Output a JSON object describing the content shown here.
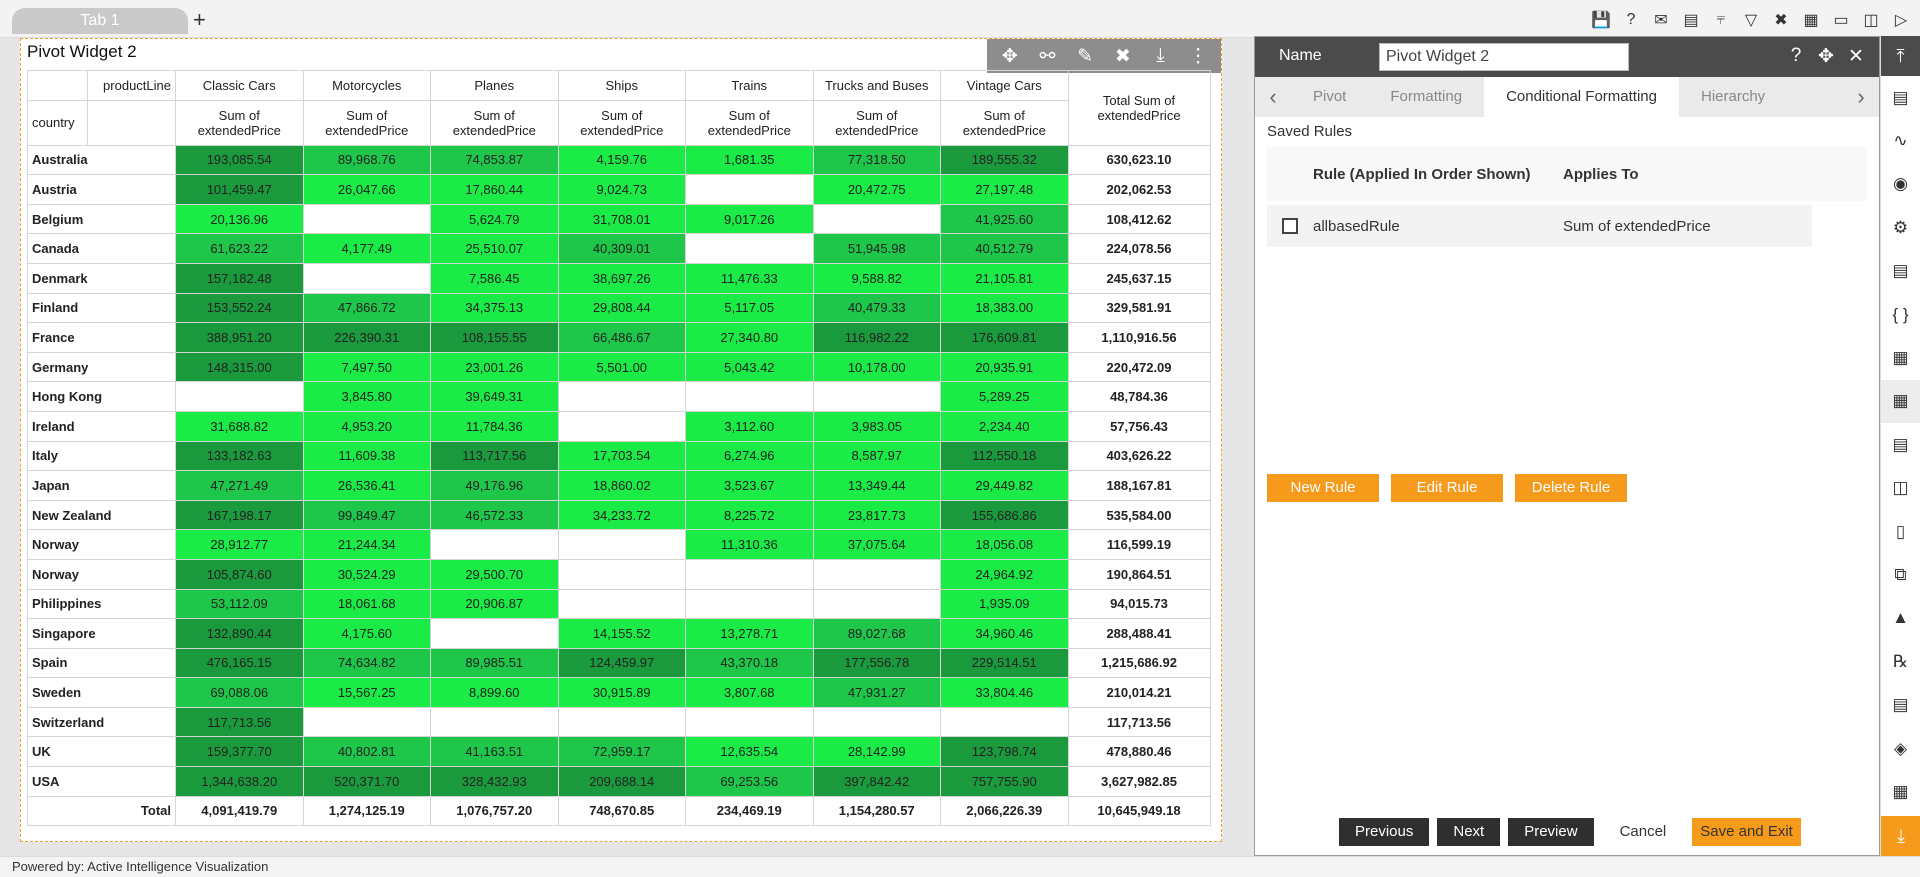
{
  "tabs": [
    {
      "label": "Tab 1"
    }
  ],
  "tab_add": "+",
  "toolbar_icons": [
    "save-icon",
    "help-icon",
    "mail-icon",
    "comment-icon",
    "clear-filter-icon",
    "filter-icon",
    "tools-icon",
    "table-icon",
    "screen-icon",
    "devices-icon",
    "play-icon"
  ],
  "widget": {
    "title": "Pivot Widget 2",
    "toolbar_icons": [
      "move-icon",
      "link-icon",
      "edit-icon",
      "settings-icon",
      "download-icon",
      "more-icon"
    ],
    "row_field": "country",
    "col_field": "productLine",
    "measure": "Sum of extendedPrice",
    "total_header": "Total Sum of extendedPrice",
    "columns": [
      "Classic Cars",
      "Motorcycles",
      "Planes",
      "Ships",
      "Trains",
      "Trucks and Buses",
      "Vintage Cars"
    ],
    "rows": [
      {
        "country": "Australia",
        "cells": [
          "193,085.54",
          "89,968.76",
          "74,853.87",
          "4,159.76",
          "1,681.35",
          "77,318.50",
          "189,555.32"
        ],
        "total": "630,623.10"
      },
      {
        "country": "Austria",
        "cells": [
          "101,459.47",
          "26,047.66",
          "17,860.44",
          "9,024.73",
          "",
          "20,472.75",
          "27,197.48"
        ],
        "total": "202,062.53"
      },
      {
        "country": "Belgium",
        "cells": [
          "20,136.96",
          "",
          "5,624.79",
          "31,708.01",
          "9,017.26",
          "",
          "41,925.60"
        ],
        "total": "108,412.62"
      },
      {
        "country": "Canada",
        "cells": [
          "61,623.22",
          "4,177.49",
          "25,510.07",
          "40,309.01",
          "",
          "51,945.98",
          "40,512.79"
        ],
        "total": "224,078.56"
      },
      {
        "country": "Denmark",
        "cells": [
          "157,182.48",
          "",
          "7,586.45",
          "38,697.26",
          "11,476.33",
          "9,588.82",
          "21,105.81"
        ],
        "total": "245,637.15"
      },
      {
        "country": "Finland",
        "cells": [
          "153,552.24",
          "47,866.72",
          "34,375.13",
          "29,808.44",
          "5,117.05",
          "40,479.33",
          "18,383.00"
        ],
        "total": "329,581.91"
      },
      {
        "country": "France",
        "cells": [
          "388,951.20",
          "226,390.31",
          "108,155.55",
          "66,486.67",
          "27,340.80",
          "116,982.22",
          "176,609.81"
        ],
        "total": "1,110,916.56"
      },
      {
        "country": "Germany",
        "cells": [
          "148,315.00",
          "7,497.50",
          "23,001.26",
          "5,501.00",
          "5,043.42",
          "10,178.00",
          "20,935.91"
        ],
        "total": "220,472.09"
      },
      {
        "country": "Hong Kong",
        "cells": [
          "",
          "3,845.80",
          "39,649.31",
          "",
          "",
          "",
          "5,289.25"
        ],
        "total": "48,784.36"
      },
      {
        "country": "Ireland",
        "cells": [
          "31,688.82",
          "4,953.20",
          "11,784.36",
          "",
          "3,112.60",
          "3,983.05",
          "2,234.40"
        ],
        "total": "57,756.43"
      },
      {
        "country": "Italy",
        "cells": [
          "133,182.63",
          "11,609.38",
          "113,717.56",
          "17,703.54",
          "6,274.96",
          "8,587.97",
          "112,550.18"
        ],
        "total": "403,626.22"
      },
      {
        "country": "Japan",
        "cells": [
          "47,271.49",
          "26,536.41",
          "49,176.96",
          "18,860.02",
          "3,523.67",
          "13,349.44",
          "29,449.82"
        ],
        "total": "188,167.81"
      },
      {
        "country": "New Zealand",
        "cells": [
          "167,198.17",
          "99,849.47",
          "46,572.33",
          "34,233.72",
          "8,225.72",
          "23,817.73",
          "155,686.86"
        ],
        "total": "535,584.00"
      },
      {
        "country": "Norway",
        "cells": [
          "28,912.77",
          "21,244.34",
          "",
          "",
          "11,310.36",
          "37,075.64",
          "18,056.08"
        ],
        "total": "116,599.19"
      },
      {
        "country": "Norway",
        "cells": [
          "105,874.60",
          "30,524.29",
          "29,500.70",
          "",
          "",
          "",
          "24,964.92"
        ],
        "total": "190,864.51"
      },
      {
        "country": "Philippines",
        "cells": [
          "53,112.09",
          "18,061.68",
          "20,906.87",
          "",
          "",
          "",
          "1,935.09"
        ],
        "total": "94,015.73"
      },
      {
        "country": "Singapore",
        "cells": [
          "132,890.44",
          "4,175.60",
          "",
          "14,155.52",
          "13,278.71",
          "89,027.68",
          "34,960.46"
        ],
        "total": "288,488.41"
      },
      {
        "country": "Spain",
        "cells": [
          "476,165.15",
          "74,634.82",
          "89,985.51",
          "124,459.97",
          "43,370.18",
          "177,556.78",
          "229,514.51"
        ],
        "total": "1,215,686.92"
      },
      {
        "country": "Sweden",
        "cells": [
          "69,088.06",
          "15,567.25",
          "8,899.60",
          "30,915.89",
          "3,807.68",
          "47,931.27",
          "33,804.46"
        ],
        "total": "210,014.21"
      },
      {
        "country": "Switzerland",
        "cells": [
          "117,713.56",
          "",
          "",
          "",
          "",
          "",
          ""
        ],
        "total": "117,713.56"
      },
      {
        "country": "UK",
        "cells": [
          "159,377.70",
          "40,802.81",
          "41,163.51",
          "72,959.17",
          "12,635.54",
          "28,142.99",
          "123,798.74"
        ],
        "total": "478,880.46"
      },
      {
        "country": "USA",
        "cells": [
          "1,344,638.20",
          "520,371.70",
          "328,432.93",
          "209,688.14",
          "69,253.56",
          "397,842.42",
          "757,755.90"
        ],
        "total": "3,627,982.85"
      }
    ],
    "grand_total": {
      "label": "Total",
      "cells": [
        "4,091,419.79",
        "1,274,125.19",
        "1,076,757.20",
        "748,670.85",
        "234,469.19",
        "1,154,280.57",
        "2,066,226.39"
      ],
      "total": "10,645,949.18"
    },
    "colors": {
      "light": "#1aeb46",
      "mid": "#1ec64a",
      "dark": "#1a9a3c",
      "empty": "#ffffff"
    }
  },
  "panel": {
    "name_label": "Name",
    "name_value": "Pivot Widget 2",
    "head_icons": [
      "help-icon",
      "move-icon",
      "close-icon"
    ],
    "tabs": [
      "Pivot",
      "Formatting",
      "Conditional Formatting",
      "Hierarchy"
    ],
    "active_tab": "Conditional Formatting",
    "saved_rules_label": "Saved Rules",
    "rules_header": {
      "rule": "Rule (Applied In Order Shown)",
      "applies": "Applies To"
    },
    "rules": [
      {
        "name": "allbasedRule",
        "applies_to": "Sum of extendedPrice",
        "checked": false
      }
    ],
    "rule_buttons": [
      "New Rule",
      "Edit Rule",
      "Delete Rule"
    ],
    "footer_buttons": {
      "previous": "Previous",
      "next": "Next",
      "preview": "Preview",
      "cancel": "Cancel",
      "save_exit": "Save and Exit"
    }
  },
  "sidebar_icons": [
    "collapse-up-icon",
    "list-icon",
    "chart-icon",
    "map-icon",
    "doc-settings-icon",
    "document-icon",
    "braces-icon",
    "image-icon",
    "pivot-icon",
    "calculator-icon",
    "hierarchy-icon",
    "bar-chart-icon",
    "copy-icon",
    "cubes-icon",
    "rx-icon",
    "report-icon",
    "layers-icon",
    "grid-icon",
    "collapse-down-icon"
  ],
  "status": "Powered by: Active Intelligence Visualization"
}
